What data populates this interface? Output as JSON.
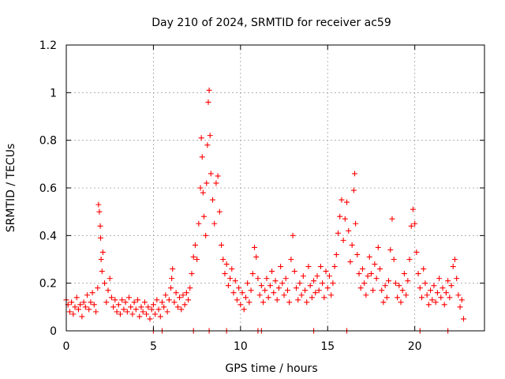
{
  "chart_data": {
    "type": "scatter",
    "title": "Day 210 of 2024, SRMTID for receiver ac59",
    "xlabel": "GPS time / hours",
    "ylabel": "SRMTID / TECUs",
    "xlim": [
      0,
      24
    ],
    "ylim": [
      0,
      1.2
    ],
    "grid": true,
    "marker": "+",
    "color": "#ff0000",
    "xticks": [
      0,
      5,
      10,
      15,
      20
    ],
    "xtick_labels": [
      "0",
      "5",
      "10",
      "15",
      "20"
    ],
    "yticks": [
      0,
      0.2,
      0.4,
      0.6,
      0.8,
      1.0,
      1.2
    ],
    "ytick_labels": [
      "0",
      "0.2",
      "0.4",
      "0.6",
      "0.8",
      "1",
      "1.2"
    ],
    "series": [
      {
        "name": "ac59",
        "points": [
          [
            0.0,
            0.13
          ],
          [
            0.1,
            0.11
          ],
          [
            0.2,
            0.08
          ],
          [
            0.3,
            0.12
          ],
          [
            0.4,
            0.07
          ],
          [
            0.5,
            0.1
          ],
          [
            0.6,
            0.14
          ],
          [
            0.7,
            0.09
          ],
          [
            0.8,
            0.11
          ],
          [
            0.9,
            0.06
          ],
          [
            1.0,
            0.12
          ],
          [
            1.1,
            0.1
          ],
          [
            1.2,
            0.15
          ],
          [
            1.3,
            0.09
          ],
          [
            1.4,
            0.12
          ],
          [
            1.5,
            0.16
          ],
          [
            1.6,
            0.11
          ],
          [
            1.7,
            0.08
          ],
          [
            1.8,
            0.18
          ],
          [
            1.85,
            0.53
          ],
          [
            1.9,
            0.5
          ],
          [
            1.95,
            0.44
          ],
          [
            1.97,
            0.39
          ],
          [
            2.0,
            0.3
          ],
          [
            2.05,
            0.25
          ],
          [
            2.1,
            0.33
          ],
          [
            2.2,
            0.2
          ],
          [
            2.3,
            0.12
          ],
          [
            2.4,
            0.17
          ],
          [
            2.5,
            0.22
          ],
          [
            2.6,
            0.14
          ],
          [
            2.7,
            0.1
          ],
          [
            2.8,
            0.13
          ],
          [
            2.9,
            0.08
          ],
          [
            3.0,
            0.11
          ],
          [
            3.1,
            0.07
          ],
          [
            3.2,
            0.13
          ],
          [
            3.3,
            0.09
          ],
          [
            3.4,
            0.12
          ],
          [
            3.5,
            0.08
          ],
          [
            3.6,
            0.14
          ],
          [
            3.7,
            0.1
          ],
          [
            3.8,
            0.07
          ],
          [
            3.9,
            0.12
          ],
          [
            4.0,
            0.09
          ],
          [
            4.1,
            0.13
          ],
          [
            4.2,
            0.06
          ],
          [
            4.3,
            0.1
          ],
          [
            4.4,
            0.08
          ],
          [
            4.5,
            0.12
          ],
          [
            4.6,
            0.07
          ],
          [
            4.7,
            0.1
          ],
          [
            4.8,
            0.05
          ],
          [
            4.9,
            0.09
          ],
          [
            5.0,
            0.11
          ],
          [
            5.1,
            0.07
          ],
          [
            5.2,
            0.13
          ],
          [
            5.3,
            0.09
          ],
          [
            5.4,
            0.06
          ],
          [
            5.5,
            0.12
          ],
          [
            5.6,
            0.1
          ],
          [
            5.7,
            0.15
          ],
          [
            5.8,
            0.08
          ],
          [
            5.9,
            0.13
          ],
          [
            6.0,
            0.18
          ],
          [
            6.05,
            0.22
          ],
          [
            6.1,
            0.26
          ],
          [
            6.2,
            0.12
          ],
          [
            6.3,
            0.16
          ],
          [
            6.4,
            0.1
          ],
          [
            6.5,
            0.14
          ],
          [
            6.6,
            0.09
          ],
          [
            6.7,
            0.15
          ],
          [
            6.8,
            0.11
          ],
          [
            6.9,
            0.16
          ],
          [
            7.0,
            0.13
          ],
          [
            7.1,
            0.18
          ],
          [
            7.2,
            0.24
          ],
          [
            7.3,
            0.31
          ],
          [
            7.4,
            0.36
          ],
          [
            7.5,
            0.3
          ],
          [
            7.6,
            0.45
          ],
          [
            7.7,
            0.6
          ],
          [
            7.75,
            0.81
          ],
          [
            7.8,
            0.73
          ],
          [
            7.85,
            0.58
          ],
          [
            7.9,
            0.48
          ],
          [
            8.0,
            0.4
          ],
          [
            8.05,
            0.62
          ],
          [
            8.1,
            0.78
          ],
          [
            8.15,
            0.96
          ],
          [
            8.2,
            1.01
          ],
          [
            8.25,
            0.82
          ],
          [
            8.3,
            0.66
          ],
          [
            8.4,
            0.55
          ],
          [
            8.5,
            0.45
          ],
          [
            8.6,
            0.62
          ],
          [
            8.7,
            0.65
          ],
          [
            8.8,
            0.5
          ],
          [
            8.9,
            0.36
          ],
          [
            9.0,
            0.3
          ],
          [
            9.1,
            0.24
          ],
          [
            9.2,
            0.28
          ],
          [
            9.3,
            0.19
          ],
          [
            9.4,
            0.22
          ],
          [
            9.5,
            0.26
          ],
          [
            9.6,
            0.16
          ],
          [
            9.7,
            0.21
          ],
          [
            9.8,
            0.13
          ],
          [
            9.9,
            0.18
          ],
          [
            10.0,
            0.11
          ],
          [
            10.1,
            0.16
          ],
          [
            10.2,
            0.09
          ],
          [
            10.3,
            0.14
          ],
          [
            10.4,
            0.2
          ],
          [
            10.5,
            0.12
          ],
          [
            10.6,
            0.17
          ],
          [
            10.7,
            0.24
          ],
          [
            10.8,
            0.35
          ],
          [
            10.9,
            0.31
          ],
          [
            11.0,
            0.22
          ],
          [
            11.1,
            0.15
          ],
          [
            11.2,
            0.19
          ],
          [
            11.3,
            0.12
          ],
          [
            11.4,
            0.17
          ],
          [
            11.5,
            0.22
          ],
          [
            11.6,
            0.14
          ],
          [
            11.7,
            0.19
          ],
          [
            11.8,
            0.25
          ],
          [
            11.9,
            0.16
          ],
          [
            12.0,
            0.21
          ],
          [
            12.1,
            0.13
          ],
          [
            12.2,
            0.18
          ],
          [
            12.3,
            0.27
          ],
          [
            12.4,
            0.2
          ],
          [
            12.5,
            0.15
          ],
          [
            12.6,
            0.22
          ],
          [
            12.7,
            0.17
          ],
          [
            12.8,
            0.12
          ],
          [
            12.9,
            0.3
          ],
          [
            13.0,
            0.4
          ],
          [
            13.1,
            0.25
          ],
          [
            13.2,
            0.18
          ],
          [
            13.3,
            0.13
          ],
          [
            13.4,
            0.2
          ],
          [
            13.5,
            0.15
          ],
          [
            13.6,
            0.23
          ],
          [
            13.7,
            0.17
          ],
          [
            13.8,
            0.12
          ],
          [
            13.9,
            0.27
          ],
          [
            14.0,
            0.19
          ],
          [
            14.1,
            0.14
          ],
          [
            14.2,
            0.21
          ],
          [
            14.3,
            0.16
          ],
          [
            14.4,
            0.23
          ],
          [
            14.5,
            0.17
          ],
          [
            14.6,
            0.27
          ],
          [
            14.7,
            0.2
          ],
          [
            14.8,
            0.14
          ],
          [
            14.9,
            0.25
          ],
          [
            15.0,
            0.18
          ],
          [
            15.1,
            0.23
          ],
          [
            15.2,
            0.15
          ],
          [
            15.3,
            0.2
          ],
          [
            15.4,
            0.27
          ],
          [
            15.5,
            0.32
          ],
          [
            15.6,
            0.41
          ],
          [
            15.7,
            0.48
          ],
          [
            15.8,
            0.55
          ],
          [
            15.9,
            0.38
          ],
          [
            16.0,
            0.47
          ],
          [
            16.1,
            0.54
          ],
          [
            16.2,
            0.42
          ],
          [
            16.3,
            0.29
          ],
          [
            16.4,
            0.36
          ],
          [
            16.5,
            0.59
          ],
          [
            16.55,
            0.66
          ],
          [
            16.6,
            0.45
          ],
          [
            16.7,
            0.32
          ],
          [
            16.8,
            0.24
          ],
          [
            16.9,
            0.18
          ],
          [
            17.0,
            0.26
          ],
          [
            17.1,
            0.2
          ],
          [
            17.2,
            0.15
          ],
          [
            17.3,
            0.23
          ],
          [
            17.4,
            0.31
          ],
          [
            17.5,
            0.24
          ],
          [
            17.6,
            0.17
          ],
          [
            17.7,
            0.28
          ],
          [
            17.8,
            0.22
          ],
          [
            17.9,
            0.35
          ],
          [
            18.0,
            0.26
          ],
          [
            18.1,
            0.17
          ],
          [
            18.2,
            0.12
          ],
          [
            18.3,
            0.19
          ],
          [
            18.4,
            0.14
          ],
          [
            18.5,
            0.21
          ],
          [
            18.6,
            0.34
          ],
          [
            18.7,
            0.47
          ],
          [
            18.8,
            0.3
          ],
          [
            18.9,
            0.2
          ],
          [
            19.0,
            0.14
          ],
          [
            19.1,
            0.19
          ],
          [
            19.2,
            0.12
          ],
          [
            19.3,
            0.17
          ],
          [
            19.4,
            0.24
          ],
          [
            19.5,
            0.15
          ],
          [
            19.6,
            0.21
          ],
          [
            19.7,
            0.3
          ],
          [
            19.8,
            0.44
          ],
          [
            19.9,
            0.51
          ],
          [
            20.0,
            0.45
          ],
          [
            20.1,
            0.33
          ],
          [
            20.2,
            0.24
          ],
          [
            20.3,
            0.18
          ],
          [
            20.4,
            0.14
          ],
          [
            20.5,
            0.26
          ],
          [
            20.6,
            0.2
          ],
          [
            20.7,
            0.15
          ],
          [
            20.8,
            0.11
          ],
          [
            20.9,
            0.17
          ],
          [
            21.0,
            0.13
          ],
          [
            21.1,
            0.19
          ],
          [
            21.2,
            0.12
          ],
          [
            21.3,
            0.16
          ],
          [
            21.4,
            0.22
          ],
          [
            21.5,
            0.14
          ],
          [
            21.6,
            0.18
          ],
          [
            21.7,
            0.11
          ],
          [
            21.8,
            0.16
          ],
          [
            21.9,
            0.21
          ],
          [
            22.0,
            0.14
          ],
          [
            22.1,
            0.19
          ],
          [
            22.2,
            0.27
          ],
          [
            22.3,
            0.3
          ],
          [
            22.4,
            0.22
          ],
          [
            22.5,
            0.15
          ],
          [
            22.6,
            0.1
          ],
          [
            22.7,
            0.13
          ],
          [
            22.8,
            0.05
          ]
        ]
      }
    ],
    "zero_markers_x": [
      5.0,
      5.5,
      7.3,
      8.2,
      9.2,
      11.0,
      11.2,
      14.2,
      16.1,
      20.3,
      21.9
    ]
  }
}
